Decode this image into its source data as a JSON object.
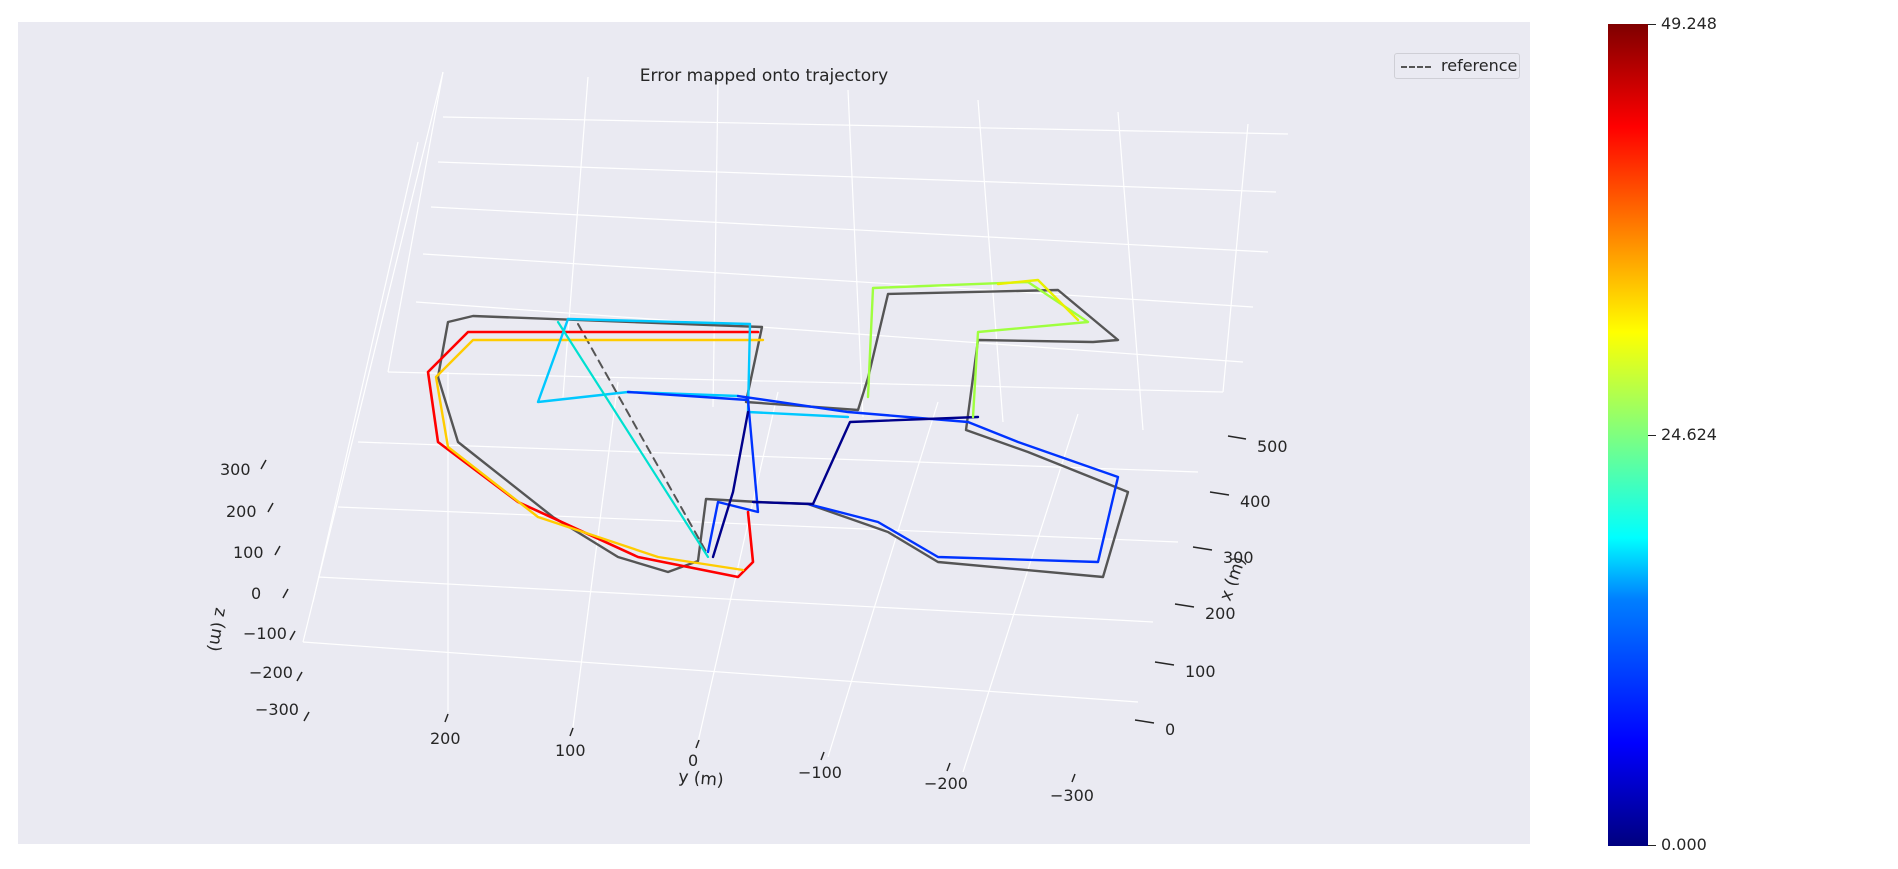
{
  "chart_data": {
    "type": "line",
    "title": "Error mapped onto trajectory",
    "legend": {
      "entries": [
        "reference"
      ],
      "placement": "top-right"
    },
    "axes": {
      "x": {
        "label": "x (m)",
        "ticks": [
          "0",
          "100",
          "200",
          "300",
          "400",
          "500"
        ]
      },
      "y": {
        "label": "y (m)",
        "ticks": [
          "200",
          "100",
          "0",
          "−100",
          "−200",
          "−300"
        ]
      },
      "z": {
        "label": "z (m)",
        "ticks": [
          "300",
          "200",
          "100",
          "0",
          "−100",
          "−200",
          "−300"
        ]
      }
    },
    "grid": true,
    "colorbar": {
      "colormap": "jet",
      "min": 0.0,
      "max": 49.248,
      "ticks": [
        "49.248",
        "24.624",
        "0.000"
      ]
    },
    "series": [
      {
        "name": "reference",
        "style": "dashed",
        "color": "#555555"
      }
    ]
  }
}
